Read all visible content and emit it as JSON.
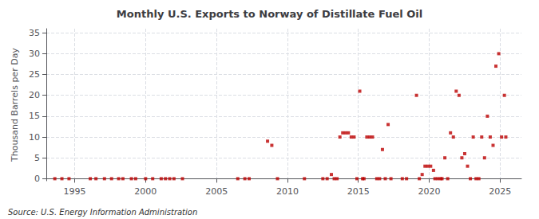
{
  "chart_data": {
    "type": "scatter",
    "title": "Monthly U.S. Exports to Norway of Distillate Fuel Oil",
    "ylabel": "Thousand Barrels per Day",
    "annotations": [
      "Source: U.S. Energy Information Administration"
    ],
    "x": [
      1993.6,
      1994.1,
      1994.6,
      1996.1,
      1996.5,
      1997.1,
      1997.6,
      1998.1,
      1998.4,
      1999.0,
      1999.3,
      2000.0,
      2000.5,
      2001.1,
      2001.4,
      2001.7,
      2002.0,
      2002.6,
      2006.5,
      2007.0,
      2007.3,
      2008.6,
      2008.9,
      2009.3,
      2011.2,
      2012.5,
      2012.8,
      2013.1,
      2013.3,
      2013.5,
      2013.7,
      2013.9,
      2014.1,
      2014.3,
      2014.5,
      2014.7,
      2014.9,
      2015.1,
      2015.3,
      2015.4,
      2015.6,
      2015.8,
      2016.0,
      2016.3,
      2016.5,
      2016.7,
      2016.9,
      2017.1,
      2017.3,
      2018.1,
      2018.4,
      2019.1,
      2019.3,
      2019.5,
      2019.7,
      2019.9,
      2020.1,
      2020.3,
      2020.4,
      2020.6,
      2020.8,
      2020.9,
      2021.1,
      2021.3,
      2021.5,
      2021.7,
      2021.9,
      2022.1,
      2022.3,
      2022.5,
      2022.7,
      2022.9,
      2023.1,
      2023.3,
      2023.5,
      2023.7,
      2023.9,
      2024.1,
      2024.3,
      2024.5,
      2024.7,
      2024.9,
      2025.1,
      2025.3,
      2025.4
    ],
    "values": [
      0,
      0,
      0,
      0,
      0,
      0,
      0,
      0,
      0,
      0,
      0,
      0,
      0,
      0,
      0,
      0,
      0,
      0,
      0,
      0,
      0,
      9,
      8,
      0,
      0,
      0,
      0,
      1,
      0,
      0,
      10,
      11,
      11,
      11,
      10,
      10,
      0,
      21,
      0,
      0,
      10,
      10,
      10,
      0,
      0,
      7,
      0,
      13,
      0,
      0,
      0,
      20,
      0,
      1,
      3,
      3,
      3,
      2,
      0,
      0,
      0,
      0,
      5,
      0,
      11,
      10,
      21,
      20,
      5,
      6,
      3,
      0,
      10,
      0,
      0,
      10,
      5,
      15,
      10,
      8,
      27,
      30,
      10,
      20,
      10
    ],
    "color": "#bb0000",
    "marker": "square",
    "xlim": [
      1993.0,
      2026.5
    ],
    "ylim": [
      -0.5,
      36
    ],
    "xticks": [
      1995,
      2000,
      2005,
      2010,
      2015,
      2020,
      2025
    ],
    "yticks": [
      0,
      5,
      10,
      15,
      20,
      25,
      30,
      35
    ],
    "grid": true
  }
}
